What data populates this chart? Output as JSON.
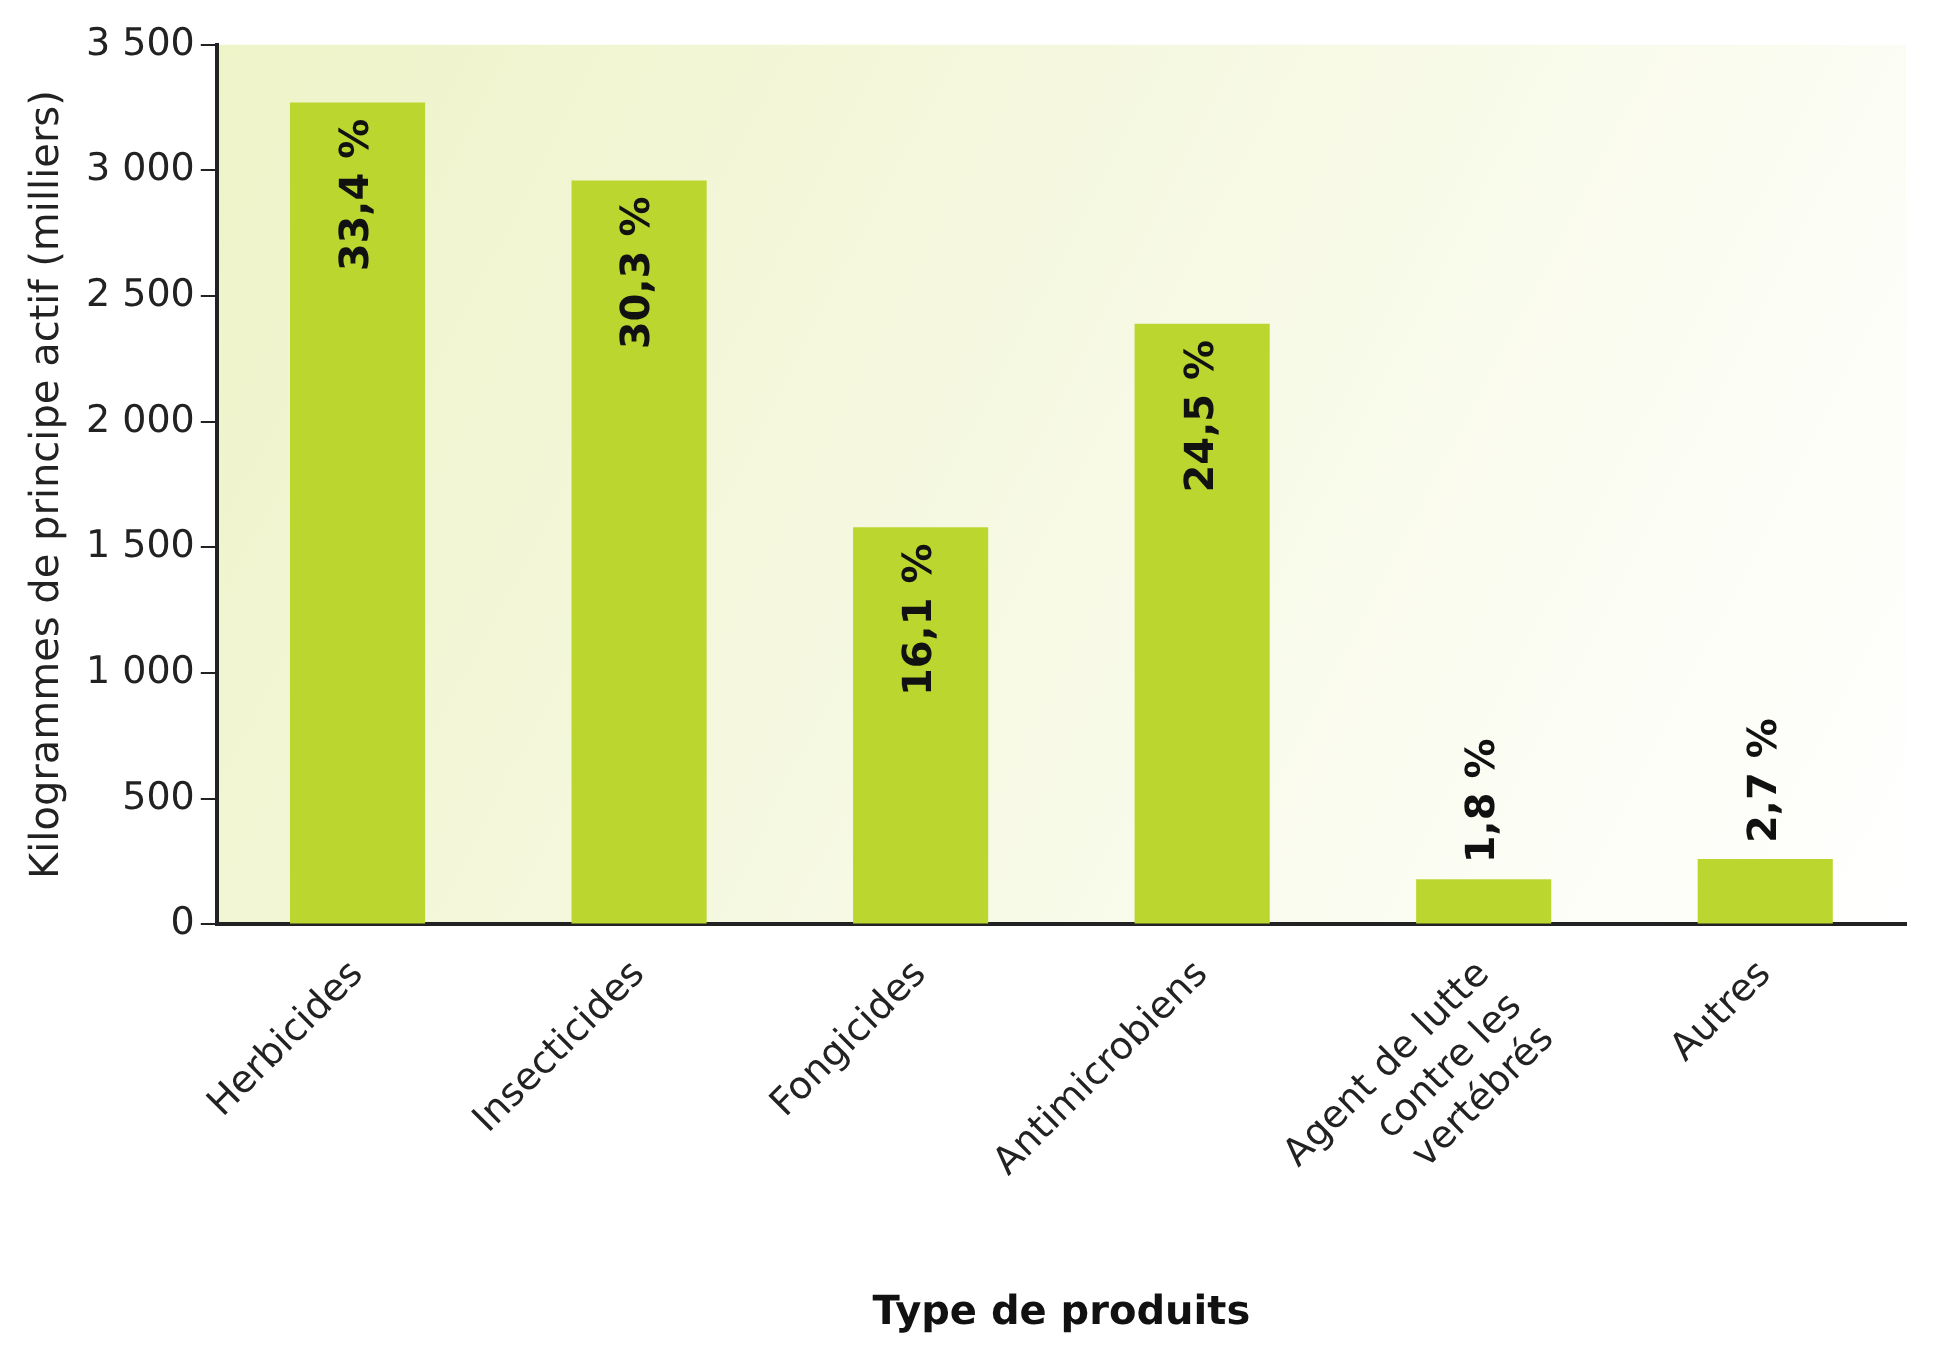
{
  "chart_data": {
    "type": "bar",
    "xlabel": "Type de produits",
    "ylabel": "Kilogrammes de principe actif (milliers)",
    "categories": [
      "Herbicides",
      "Insecticides",
      "Fongicides",
      "Antimicrobiens",
      "Agent de lutte contre les vertébrés",
      "Autres"
    ],
    "values": [
      3270,
      2960,
      1580,
      2390,
      180,
      260
    ],
    "annotations": [
      {
        "text": "33,4 %",
        "x": "Herbicides",
        "y": 3270
      },
      {
        "text": "30,3 %",
        "x": "Insecticides",
        "y": 2960
      },
      {
        "text": "16,1 %",
        "x": "Fongicides",
        "y": 1580
      },
      {
        "text": "24,5 %",
        "x": "Antimicrobiens",
        "y": 2390
      },
      {
        "text": "1,8 %",
        "x": "Agent de lutte contre les vertébrés",
        "y": 180
      },
      {
        "text": "2,7 %",
        "x": "Autres",
        "y": 260
      }
    ],
    "color": "#bcd630",
    "ylim": [
      0,
      3500
    ],
    "yticks": [
      {
        "value": 0,
        "label": "0"
      },
      {
        "value": 500,
        "label": "500"
      },
      {
        "value": 1000,
        "label": "1 000"
      },
      {
        "value": 1500,
        "label": "1 500"
      },
      {
        "value": 2000,
        "label": "2 000"
      },
      {
        "value": 2500,
        "label": "2 500"
      },
      {
        "value": 3000,
        "label": "3 000"
      },
      {
        "value": 3500,
        "label": "3 500"
      }
    ],
    "grid": false,
    "legend": false
  }
}
